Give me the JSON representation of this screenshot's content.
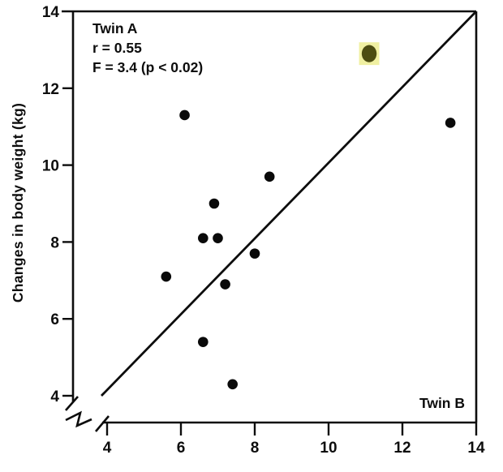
{
  "chart_data": {
    "type": "scatter",
    "title": "",
    "xlabel": "",
    "ylabel": "Changes in body weight (kg)",
    "corner_label": "Twin B",
    "annotation_lines": [
      "Twin A",
      "r = 0.55",
      "F = 3.4 (p < 0.02)"
    ],
    "xticks": [
      4,
      6,
      8,
      10,
      12,
      14
    ],
    "yticks": [
      4,
      6,
      8,
      10,
      12,
      14
    ],
    "xlim": [
      4,
      14
    ],
    "ylim": [
      4,
      14
    ],
    "grid": false,
    "legend": false,
    "axis_break": true,
    "line": {
      "type": "identity",
      "x1": 3.9,
      "y1": 4.0,
      "x2": 14,
      "y2": 14
    },
    "points": [
      {
        "x": 6.1,
        "y": 11.3,
        "highlighted": false
      },
      {
        "x": 11.1,
        "y": 12.9,
        "highlighted": true
      },
      {
        "x": 13.3,
        "y": 11.1,
        "highlighted": false
      },
      {
        "x": 8.4,
        "y": 9.7,
        "highlighted": false
      },
      {
        "x": 6.9,
        "y": 9.0,
        "highlighted": false
      },
      {
        "x": 6.6,
        "y": 8.1,
        "highlighted": false
      },
      {
        "x": 7.0,
        "y": 8.1,
        "highlighted": false
      },
      {
        "x": 8.0,
        "y": 7.7,
        "highlighted": false
      },
      {
        "x": 5.6,
        "y": 7.1,
        "highlighted": false
      },
      {
        "x": 7.2,
        "y": 6.9,
        "highlighted": false
      },
      {
        "x": 6.6,
        "y": 5.4,
        "highlighted": false
      },
      {
        "x": 7.4,
        "y": 4.3,
        "highlighted": false
      }
    ],
    "colors": {
      "ink": "#0d0d0d",
      "background": "#ffffff",
      "point": "#0a0a0a",
      "highlight_dot": "#4d4d12",
      "highlight_halo": "#f0f0a2"
    }
  }
}
